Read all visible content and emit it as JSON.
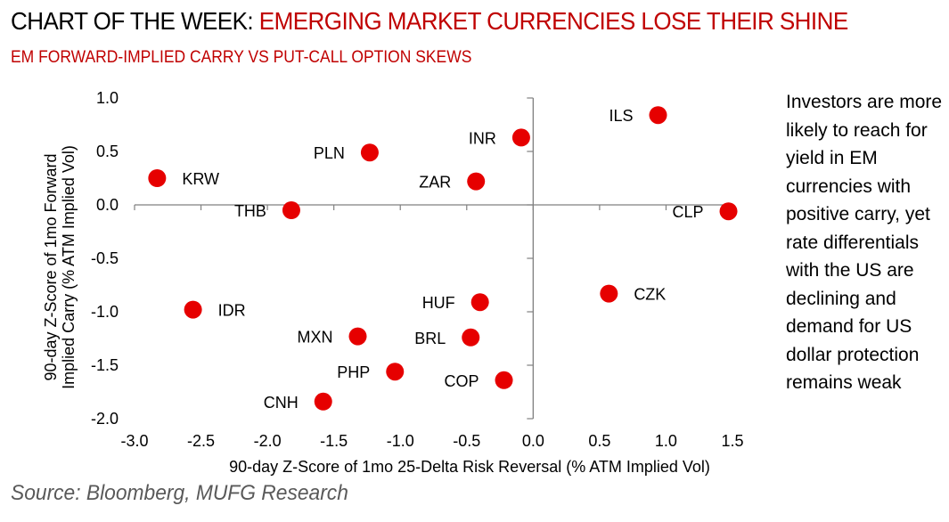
{
  "header": {
    "title_lead": "CHART OF THE WEEK: ",
    "title_accent": "EMERGING MARKET CURRENCIES LOSE THEIR SHINE",
    "subtitle": "EM FORWARD-IMPLIED CARRY VS PUT-CALL OPTION SKEWS"
  },
  "side_note": "Investors are more likely to reach for yield in EM currencies with positive carry, yet rate differentials with the US are declining and demand for US dollar protection remains weak",
  "source": "Source: Bloomberg, MUFG Research",
  "colors": {
    "accent": "#c00000",
    "point": "#e60000",
    "axis": "#808080",
    "source_text": "#595959"
  },
  "chart_data": {
    "type": "scatter",
    "title": "EM FORWARD-IMPLIED CARRY VS PUT-CALL OPTION SKEWS",
    "xlabel": "90-day Z-Score of 1mo 25-Delta Risk Reversal (% ATM Implied Vol)",
    "ylabel_lines": [
      "90-day Z-Score of 1mo Forward",
      "Implied Carry (% ATM Implied Vol)"
    ],
    "xlim": [
      -3.0,
      1.5
    ],
    "ylim": [
      -2.0,
      1.0
    ],
    "x_ticks": [
      "-3.0",
      "-2.5",
      "-2.0",
      "-1.5",
      "-1.0",
      "-0.5",
      "0.0",
      "0.5",
      "1.0",
      "1.5"
    ],
    "x_tick_values": [
      -3.0,
      -2.5,
      -2.0,
      -1.5,
      -1.0,
      -0.5,
      0.0,
      0.5,
      1.0,
      1.5
    ],
    "y_ticks": [
      "1.0",
      "0.5",
      "0.0",
      "-0.5",
      "-1.0",
      "-1.5",
      "-2.0"
    ],
    "y_tick_values": [
      1.0,
      0.5,
      0.0,
      -0.5,
      -1.0,
      -1.5,
      -2.0
    ],
    "grid": false,
    "legend": "none",
    "points": [
      {
        "label": "ILS",
        "x": 0.94,
        "y": 0.84,
        "label_side": "left"
      },
      {
        "label": "INR",
        "x": -0.09,
        "y": 0.63,
        "label_side": "left"
      },
      {
        "label": "PLN",
        "x": -1.23,
        "y": 0.49,
        "label_side": "left"
      },
      {
        "label": "KRW",
        "x": -2.83,
        "y": 0.25,
        "label_side": "right"
      },
      {
        "label": "ZAR",
        "x": -0.43,
        "y": 0.22,
        "label_side": "left"
      },
      {
        "label": "THB",
        "x": -1.82,
        "y": -0.05,
        "label_side": "left"
      },
      {
        "label": "CLP",
        "x": 1.47,
        "y": -0.06,
        "label_side": "left"
      },
      {
        "label": "CZK",
        "x": 0.57,
        "y": -0.83,
        "label_side": "right"
      },
      {
        "label": "HUF",
        "x": -0.4,
        "y": -0.91,
        "label_side": "left"
      },
      {
        "label": "IDR",
        "x": -2.56,
        "y": -0.98,
        "label_side": "right"
      },
      {
        "label": "MXN",
        "x": -1.32,
        "y": -1.23,
        "label_side": "left"
      },
      {
        "label": "BRL",
        "x": -0.47,
        "y": -1.24,
        "label_side": "left"
      },
      {
        "label": "PHP",
        "x": -1.04,
        "y": -1.56,
        "label_side": "left"
      },
      {
        "label": "COP",
        "x": -0.22,
        "y": -1.64,
        "label_side": "left"
      },
      {
        "label": "CNH",
        "x": -1.58,
        "y": -1.84,
        "label_side": "left"
      }
    ]
  }
}
